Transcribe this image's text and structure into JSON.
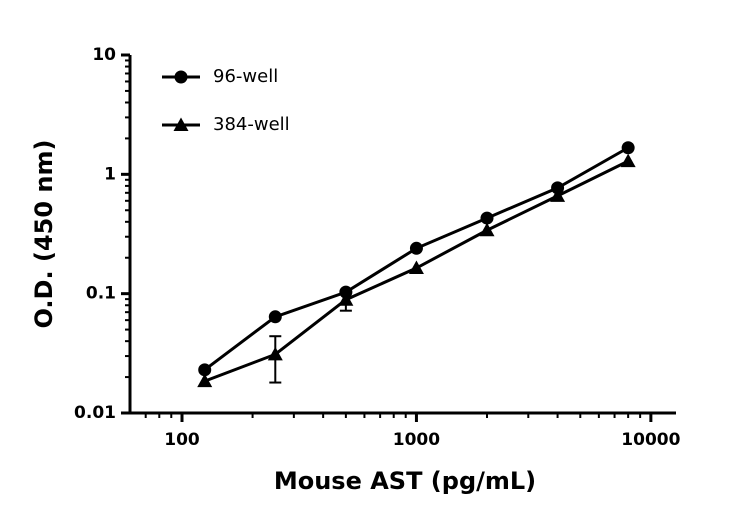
{
  "chart_data": {
    "type": "line",
    "x_label": "Mouse AST (pg/mL)",
    "y_label": "O.D. (450 nm)",
    "xscale": "log",
    "yscale": "log",
    "x": [
      125,
      250,
      500,
      1000,
      2000,
      4000,
      8000
    ],
    "series": [
      {
        "name": "96-well",
        "color": "#000000",
        "marker": "circle",
        "values": [
          0.023,
          0.064,
          0.103,
          0.24,
          0.43,
          0.77,
          1.67
        ]
      },
      {
        "name": "384-well",
        "color": "#000000",
        "marker": "triangle",
        "values": [
          0.0185,
          0.031,
          0.089,
          0.164,
          0.34,
          0.66,
          1.29
        ],
        "errors": [
          null,
          0.013,
          0.017,
          null,
          null,
          null,
          null
        ]
      }
    ],
    "xlim": [
      60,
      12800
    ],
    "ylim": [
      0.01,
      10
    ],
    "xticks": [
      100,
      1000,
      10000
    ],
    "yticks": [
      0.01,
      0.1,
      1,
      10
    ],
    "xminorticks": [
      70,
      80,
      90,
      200,
      300,
      400,
      500,
      600,
      700,
      800,
      900,
      2000,
      3000,
      4000,
      5000,
      6000,
      7000,
      8000,
      9000
    ],
    "yminorticks": [
      0.02,
      0.03,
      0.04,
      0.05,
      0.06,
      0.07,
      0.08,
      0.09,
      0.2,
      0.3,
      0.4,
      0.5,
      0.6,
      0.7,
      0.8,
      0.9,
      2,
      3,
      4,
      5,
      6,
      7,
      8,
      9
    ],
    "legend": "upper left",
    "grid": false
  }
}
